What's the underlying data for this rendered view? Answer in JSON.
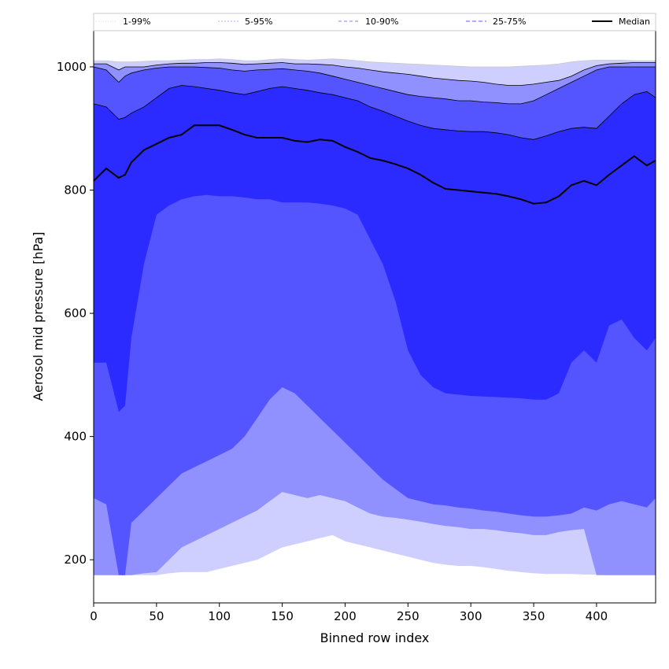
{
  "chart_data": {
    "type": "area",
    "xlabel": "Binned row index",
    "ylabel": "Aerosol mid pressure [hPa]",
    "xlim": [
      0,
      447
    ],
    "ylim": [
      130,
      1060
    ],
    "xticks": [
      0,
      50,
      100,
      150,
      200,
      250,
      300,
      350,
      400
    ],
    "yticks": [
      200,
      400,
      600,
      800,
      1000
    ],
    "grid": false,
    "legend_position": "top",
    "x": [
      0,
      10,
      20,
      25,
      30,
      40,
      50,
      60,
      70,
      80,
      90,
      100,
      110,
      120,
      130,
      140,
      150,
      160,
      170,
      180,
      190,
      200,
      210,
      220,
      230,
      240,
      250,
      260,
      270,
      280,
      290,
      300,
      310,
      320,
      330,
      340,
      350,
      360,
      370,
      380,
      390,
      400,
      410,
      420,
      430,
      440,
      447
    ],
    "series": [
      {
        "name": "1-99%",
        "color": "#cfcfff",
        "line_color": "#c8c8c8",
        "lower": [
          175,
          175,
          175,
          175,
          175,
          175,
          175,
          178,
          180,
          180,
          180,
          185,
          190,
          195,
          200,
          210,
          220,
          225,
          230,
          235,
          240,
          230,
          225,
          220,
          215,
          210,
          205,
          200,
          195,
          192,
          190,
          190,
          188,
          185,
          182,
          180,
          178,
          177,
          177,
          177,
          176,
          176,
          175,
          175,
          175,
          175,
          175
        ],
        "upper": [
          1010,
          1010,
          1008,
          1008,
          1008,
          1009,
          1010,
          1010,
          1011,
          1012,
          1012,
          1013,
          1012,
          1010,
          1010,
          1012,
          1013,
          1012,
          1011,
          1012,
          1013,
          1012,
          1010,
          1008,
          1007,
          1006,
          1005,
          1004,
          1003,
          1002,
          1001,
          1000,
          1000,
          1000,
          1000,
          1001,
          1002,
          1003,
          1005,
          1008,
          1010,
          1011,
          1011,
          1011,
          1010,
          1010,
          1010
        ]
      },
      {
        "name": "5-95%",
        "color": "#9090ff",
        "line_color": "#000000",
        "lower": [
          175,
          175,
          175,
          175,
          175,
          178,
          180,
          200,
          220,
          230,
          240,
          250,
          260,
          270,
          280,
          295,
          310,
          305,
          300,
          305,
          300,
          295,
          285,
          275,
          270,
          268,
          265,
          262,
          258,
          255,
          253,
          250,
          250,
          248,
          245,
          243,
          240,
          240,
          245,
          248,
          250,
          175,
          175,
          175,
          175,
          175,
          175
        ],
        "upper": [
          1005,
          1005,
          995,
          1000,
          1000,
          1000,
          1003,
          1005,
          1006,
          1006,
          1007,
          1007,
          1006,
          1004,
          1005,
          1006,
          1007,
          1005,
          1005,
          1004,
          1003,
          1000,
          998,
          995,
          992,
          990,
          988,
          985,
          982,
          980,
          978,
          977,
          975,
          972,
          970,
          970,
          972,
          975,
          978,
          985,
          995,
          1002,
          1005,
          1006,
          1007,
          1007,
          1007
        ]
      },
      {
        "name": "10-90%",
        "color": "#5555ff",
        "line_color": "#000000",
        "lower": [
          300,
          290,
          175,
          175,
          260,
          280,
          300,
          320,
          340,
          350,
          360,
          370,
          380,
          400,
          430,
          460,
          480,
          470,
          450,
          430,
          410,
          390,
          370,
          350,
          330,
          315,
          300,
          295,
          290,
          288,
          285,
          283,
          280,
          278,
          275,
          272,
          270,
          270,
          272,
          275,
          285,
          280,
          290,
          295,
          290,
          285,
          300
        ],
        "upper": [
          1000,
          995,
          975,
          985,
          990,
          995,
          998,
          1000,
          1000,
          1000,
          999,
          998,
          995,
          993,
          995,
          996,
          997,
          995,
          993,
          990,
          985,
          980,
          975,
          970,
          965,
          960,
          955,
          952,
          950,
          948,
          945,
          945,
          943,
          942,
          940,
          940,
          945,
          955,
          965,
          975,
          985,
          995,
          1000,
          1000,
          1000,
          1000,
          1000
        ]
      },
      {
        "name": "25-75%",
        "color": "#2b2bff",
        "line_color": "#000000",
        "lower": [
          520,
          520,
          440,
          450,
          560,
          680,
          760,
          775,
          785,
          790,
          792,
          790,
          790,
          788,
          785,
          785,
          780,
          780,
          780,
          778,
          775,
          770,
          760,
          720,
          680,
          620,
          540,
          500,
          480,
          470,
          468,
          466,
          465,
          464,
          463,
          462,
          460,
          460,
          470,
          520,
          540,
          520,
          580,
          590,
          560,
          540,
          560
        ],
        "upper": [
          940,
          935,
          915,
          918,
          925,
          935,
          950,
          965,
          970,
          968,
          965,
          962,
          958,
          955,
          960,
          965,
          968,
          965,
          962,
          958,
          955,
          950,
          945,
          935,
          928,
          920,
          912,
          905,
          900,
          898,
          896,
          895,
          895,
          893,
          890,
          885,
          882,
          888,
          895,
          900,
          902,
          900,
          920,
          940,
          955,
          960,
          950
        ]
      }
    ],
    "median": {
      "name": "Median",
      "color": "#000000",
      "values": [
        815,
        835,
        820,
        825,
        845,
        865,
        875,
        885,
        890,
        905,
        905,
        905,
        898,
        890,
        885,
        885,
        885,
        880,
        878,
        882,
        880,
        870,
        862,
        852,
        848,
        842,
        835,
        825,
        812,
        802,
        800,
        798,
        796,
        794,
        790,
        785,
        778,
        780,
        790,
        808,
        815,
        808,
        825,
        840,
        855,
        840,
        848
      ]
    }
  }
}
